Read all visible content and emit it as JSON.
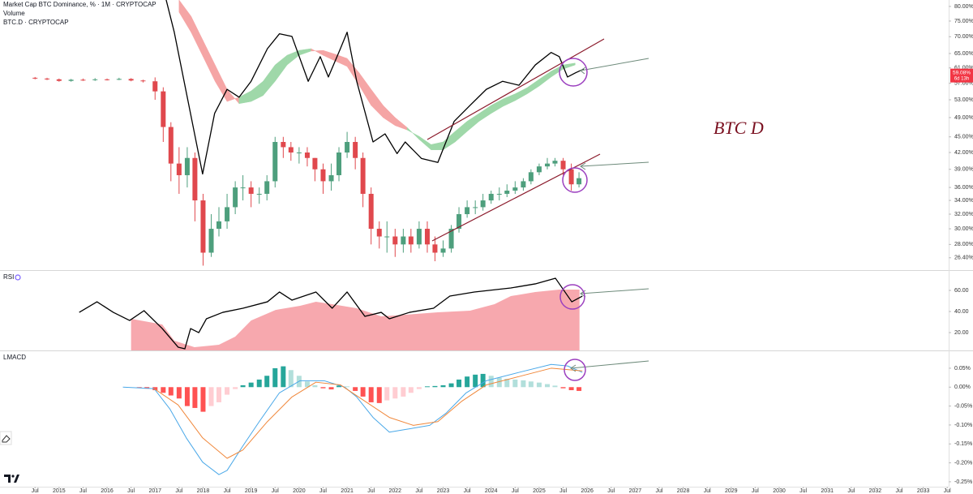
{
  "chart_data": [
    {
      "type": "candlestick",
      "title": "Market Cap BTC Dominance, % · 1M · CRYPTOCAP",
      "subtitle": "Volume",
      "annotation": "BTC D",
      "log_scale": true,
      "xlim": [
        2013.77,
        2033.53
      ],
      "ylim": [
        25.0,
        82.3
      ],
      "yticks": [
        {
          "value": 80,
          "label": "80.00%"
        },
        {
          "value": 75,
          "label": "75.00%"
        },
        {
          "value": 70,
          "label": "70.00%"
        },
        {
          "value": 65,
          "label": "65.00%"
        },
        {
          "value": 61,
          "label": "61.00%"
        },
        {
          "value": 57,
          "label": "57.00%"
        },
        {
          "value": 53,
          "label": "53.00%"
        },
        {
          "value": 49,
          "label": "49.00%"
        },
        {
          "value": 45,
          "label": "45.00%"
        },
        {
          "value": 42,
          "label": "42.00%"
        },
        {
          "value": 39,
          "label": "39.00%"
        },
        {
          "value": 36,
          "label": "36.00%"
        },
        {
          "value": 34,
          "label": "34.00%"
        },
        {
          "value": 32,
          "label": "32.00%"
        },
        {
          "value": 30,
          "label": "30.00%"
        },
        {
          "value": 28,
          "label": "28.00%"
        },
        {
          "value": 26.4,
          "label": "26.40%"
        }
      ],
      "up_color": "#4e9f7d",
      "down_color": "#e0484d",
      "x": [
        2014.5,
        2014.75,
        2015.0,
        2015.25,
        2015.5,
        2015.75,
        2016.0,
        2016.25,
        2016.5,
        2016.75,
        2017.0,
        2017.17,
        2017.33,
        2017.5,
        2017.67,
        2017.83,
        2018.0,
        2018.17,
        2018.33,
        2018.5,
        2018.67,
        2018.83,
        2019.0,
        2019.17,
        2019.33,
        2019.5,
        2019.67,
        2019.83,
        2020.0,
        2020.17,
        2020.33,
        2020.5,
        2020.67,
        2020.83,
        2021.0,
        2021.17,
        2021.33,
        2021.5,
        2021.67,
        2021.83,
        2022.0,
        2022.17,
        2022.33,
        2022.5,
        2022.67,
        2022.83,
        2023.0,
        2023.17,
        2023.33,
        2023.5,
        2023.67,
        2023.83,
        2024.0,
        2024.17,
        2024.33,
        2024.5,
        2024.67,
        2024.83,
        2025.0,
        2025.17,
        2025.33,
        2025.5,
        2025.67,
        2025.83
      ],
      "open": [
        58.4,
        58.2,
        58.0,
        57.6,
        57.9,
        57.8,
        58.0,
        57.9,
        58.1,
        57.7,
        57.5,
        55,
        47,
        40,
        38,
        41,
        34,
        27,
        30,
        31,
        33,
        36,
        36,
        35,
        35,
        37,
        44,
        43,
        42,
        42,
        41,
        39,
        37,
        38,
        42,
        44,
        41,
        35,
        30,
        29,
        29,
        28,
        29,
        28,
        30,
        28,
        27,
        27.5,
        30,
        32,
        33,
        33,
        34,
        35,
        35,
        35.5,
        36,
        37,
        38.5,
        39.5,
        40,
        40.5,
        39,
        36.5
      ],
      "high": [
        58.6,
        58.4,
        58.2,
        58.1,
        58.2,
        58.3,
        58.2,
        58.4,
        58.3,
        57.9,
        58.5,
        56,
        48,
        43,
        43,
        42,
        35,
        32,
        33,
        35,
        37,
        38,
        37,
        36,
        38,
        45,
        45,
        44,
        43,
        43,
        41,
        40,
        40,
        43,
        46,
        45,
        42,
        36,
        31,
        31,
        30,
        30,
        30,
        31,
        31,
        29,
        28.5,
        30.5,
        33,
        34,
        34,
        35,
        35.5,
        36,
        36.5,
        37,
        37.5,
        39,
        40,
        41,
        41,
        41,
        40,
        38.5
      ],
      "low": [
        58.0,
        57.8,
        57.4,
        57.4,
        57.6,
        57.6,
        57.7,
        57.8,
        57.5,
        57.2,
        53,
        44,
        37,
        35,
        36,
        31,
        25.5,
        26.5,
        29,
        30,
        32,
        34,
        33,
        33.5,
        34,
        36,
        41,
        40.5,
        40,
        39.5,
        37,
        35,
        35.5,
        37,
        41,
        39,
        33,
        28,
        27.5,
        27,
        26.5,
        27,
        27,
        27.5,
        27,
        26,
        26.5,
        27,
        29.5,
        31.5,
        32,
        32.5,
        33.5,
        34,
        34.5,
        35,
        35.5,
        36.5,
        38,
        39,
        39.5,
        38,
        35.5,
        36
      ],
      "close": [
        58.2,
        58.0,
        57.6,
        57.9,
        57.8,
        58.0,
        57.9,
        58.1,
        57.7,
        57.5,
        55,
        47,
        40,
        38,
        41,
        34,
        27,
        30,
        31,
        33,
        36,
        36,
        35,
        35,
        37,
        44,
        43,
        42,
        42,
        41,
        39,
        37,
        38,
        42,
        44,
        41,
        35,
        30,
        29,
        29,
        28,
        29,
        28,
        30,
        28,
        27,
        27.5,
        30,
        32,
        33,
        33,
        34,
        35,
        35,
        35.5,
        36,
        37,
        38.5,
        39.5,
        40,
        40.5,
        39,
        36.5,
        37.5
      ],
      "ribbon": {
        "up_color": "#9fd8a9",
        "down_color": "#f5a5a5",
        "x": [
          2017.5,
          2017.75,
          2018.0,
          2018.25,
          2018.5,
          2018.75,
          2019.0,
          2019.25,
          2019.5,
          2019.75,
          2020.0,
          2020.25,
          2020.5,
          2020.75,
          2021.0,
          2021.25,
          2021.5,
          2021.75,
          2022.0,
          2022.25,
          2022.5,
          2022.75,
          2023.0,
          2023.25,
          2023.5,
          2023.75,
          2024.0,
          2024.25,
          2024.5,
          2024.75,
          2025.0,
          2025.25,
          2025.5,
          2025.75
        ],
        "fast": [
          78.0,
          71.4,
          64.1,
          57.5,
          52.6,
          53.6,
          55.1,
          57.5,
          61.8,
          64.5,
          65.9,
          66.4,
          64.5,
          62.9,
          61.4,
          56.5,
          51.7,
          49.0,
          47.3,
          46.4,
          45.1,
          43.5,
          44.0,
          46.1,
          48.2,
          49.9,
          51.7,
          53.2,
          54.4,
          55.9,
          58.0,
          60.1,
          61.8,
          62.3
        ],
        "slow": [
          82.3,
          76.6,
          68.8,
          61.8,
          55.5,
          52.1,
          52.6,
          54.0,
          57.5,
          61.8,
          64.5,
          65.7,
          65.9,
          64.8,
          63.6,
          59.7,
          55.5,
          51.7,
          49.0,
          46.9,
          44.5,
          42.5,
          42.5,
          44.0,
          46.1,
          48.2,
          49.9,
          51.5,
          52.8,
          54.4,
          56.3,
          58.6,
          60.7,
          61.8
        ]
      },
      "series": [
        {
          "name": "BTC.D · CRYPTOCAP",
          "color": "#000000",
          "x": [
            2017.23,
            2017.4,
            2017.99,
            2018.24,
            2018.5,
            2018.75,
            2019.0,
            2019.34,
            2019.59,
            2019.85,
            2020.19,
            2020.44,
            2020.61,
            2020.86,
            2021.0,
            2021.2,
            2021.54,
            2021.79,
            2022.04,
            2022.21,
            2022.55,
            2022.89,
            2023.23,
            2023.56,
            2023.9,
            2024.24,
            2024.58,
            2024.92,
            2025.25,
            2025.42,
            2025.59,
            2025.76,
            2025.93
          ],
          "values": [
            82.4,
            71.4,
            38.2,
            49.9,
            55.5,
            53.6,
            57.5,
            66.4,
            70.9,
            70.1,
            57.5,
            64.1,
            58.6,
            66.4,
            71.4,
            57.5,
            44.0,
            45.6,
            41.8,
            44.0,
            40.9,
            40.2,
            48.2,
            51.7,
            55.5,
            57.5,
            56.5,
            61.8,
            65.3,
            64.1,
            58.6,
            59.7,
            60.7
          ]
        }
      ],
      "price_tag": {
        "value": 59.08,
        "label": "59.08%",
        "countdown": "6d 13h",
        "color": "#f23645"
      }
    },
    {
      "type": "line",
      "title": "RSI",
      "xlim": [
        2013.77,
        2033.53
      ],
      "ylim": [
        3.1,
        77.7
      ],
      "yticks": [
        {
          "value": 60,
          "label": "60.00"
        },
        {
          "value": 40,
          "label": "40.00"
        },
        {
          "value": 20,
          "label": "20.00"
        }
      ],
      "area": {
        "color": "#f7a8ae",
        "x": [
          2016.5,
          2017.15,
          2017.4,
          2017.82,
          2018.33,
          2018.67,
          2019.0,
          2019.51,
          2020.02,
          2020.35,
          2020.69,
          2021.2,
          2021.71,
          2022.21,
          2022.89,
          2023.56,
          2024.07,
          2024.41,
          2024.92,
          2025.42,
          2025.84
        ],
        "values": [
          33.1,
          27.7,
          12.3,
          6.2,
          8.5,
          16.2,
          31.5,
          41.5,
          45.4,
          49.2,
          46.9,
          43.1,
          35.4,
          36.9,
          39.2,
          40.8,
          46.9,
          54.6,
          58.5,
          60.8,
          60.8
        ]
      },
      "line": {
        "color": "#000000",
        "x": [
          2015.42,
          2015.79,
          2016.13,
          2016.47,
          2016.77,
          2017.15,
          2017.48,
          2017.62,
          2017.74,
          2017.91,
          2018.07,
          2018.41,
          2018.83,
          2019.34,
          2019.59,
          2019.85,
          2020.35,
          2020.69,
          2021.0,
          2021.37,
          2021.71,
          2021.88,
          2022.3,
          2022.8,
          2023.14,
          2023.65,
          2024.41,
          2024.92,
          2025.34,
          2025.68,
          2025.9
        ],
        "values": [
          39.2,
          49.2,
          39.2,
          31.5,
          40.8,
          23.8,
          6.2,
          4.6,
          23.8,
          20.0,
          33.1,
          39.2,
          43.1,
          49.2,
          58.5,
          50.8,
          58.5,
          43.1,
          58.5,
          35.4,
          39.2,
          33.1,
          39.2,
          43.1,
          54.6,
          58.5,
          62.3,
          66.2,
          71.5,
          49.2,
          54.6
        ]
      }
    },
    {
      "type": "histogram",
      "title": "LMACD",
      "xlim": [
        2013.77,
        2033.53
      ],
      "ylim": [
        -0.263,
        0.0927
      ],
      "yticks": [
        {
          "value": 0.05,
          "label": "0.05%"
        },
        {
          "value": 0,
          "label": "0.00%"
        },
        {
          "value": -0.05,
          "label": "-0.05%"
        },
        {
          "value": -0.1,
          "label": "-0.10%"
        },
        {
          "value": -0.15,
          "label": "-0.15%"
        },
        {
          "value": -0.2,
          "label": "-0.20%"
        },
        {
          "value": -0.25,
          "label": "-0.25%"
        }
      ],
      "xticks": [
        {
          "value": 2014.5,
          "label": "Jul"
        },
        2015,
        {
          "value": 2015.5,
          "label": "Jul"
        },
        2016,
        {
          "value": 2016.5,
          "label": "Jul"
        },
        2017,
        {
          "value": 2017.5,
          "label": "Jul"
        },
        2018,
        {
          "value": 2018.5,
          "label": "Jul"
        },
        2019,
        {
          "value": 2019.5,
          "label": "Jul"
        },
        2020,
        {
          "value": 2020.5,
          "label": "Jul"
        },
        2021,
        {
          "value": 2021.5,
          "label": "Jul"
        },
        2022,
        {
          "value": 2022.5,
          "label": "Jul"
        },
        2023,
        {
          "value": 2023.5,
          "label": "Jul"
        },
        2024,
        {
          "value": 2024.5,
          "label": "Jul"
        },
        2025,
        {
          "value": 2025.5,
          "label": "Jul"
        },
        2026,
        {
          "value": 2026.5,
          "label": "Jul"
        },
        2027,
        {
          "value": 2027.5,
          "label": "Jul"
        },
        2028,
        {
          "value": 2028.5,
          "label": "Jul"
        },
        2029,
        {
          "value": 2029.5,
          "label": "Jul"
        },
        2030,
        {
          "value": 2030.5,
          "label": "Jul"
        },
        2031,
        {
          "value": 2031.5,
          "label": "Jul"
        },
        2032,
        {
          "value": 2032.5,
          "label": "Jul"
        },
        2033,
        {
          "value": 2033.5,
          "label": "Jul"
        }
      ],
      "histogram": {
        "rise_above": "#26a69a",
        "fall_above": "#b2dfdb",
        "rise_below": "#ffcdd2",
        "fall_below": "#ff5252",
        "x": [
          2016.5,
          2016.67,
          2016.83,
          2017.0,
          2017.17,
          2017.33,
          2017.5,
          2017.67,
          2017.83,
          2018.0,
          2018.17,
          2018.33,
          2018.5,
          2018.67,
          2018.83,
          2019.0,
          2019.17,
          2019.33,
          2019.5,
          2019.67,
          2019.83,
          2020.0,
          2020.17,
          2020.33,
          2020.5,
          2020.67,
          2020.83,
          2021.0,
          2021.17,
          2021.33,
          2021.5,
          2021.67,
          2021.83,
          2022.0,
          2022.17,
          2022.33,
          2022.5,
          2022.67,
          2022.83,
          2023.0,
          2023.17,
          2023.33,
          2023.5,
          2023.67,
          2023.83,
          2024.0,
          2024.17,
          2024.33,
          2024.5,
          2024.67,
          2024.83,
          2025.0,
          2025.17,
          2025.33,
          2025.5,
          2025.67,
          2025.83
        ],
        "values": [
          0,
          -0.002,
          -0.004,
          -0.008,
          -0.015,
          -0.022,
          -0.03,
          -0.05,
          -0.055,
          -0.065,
          -0.05,
          -0.04,
          -0.02,
          -0.005,
          0.005,
          0.012,
          0.02,
          0.03,
          0.05,
          0.055,
          0.045,
          0.03,
          0.015,
          0.005,
          -0.003,
          -0.006,
          0.004,
          0.002,
          -0.01,
          -0.025,
          -0.04,
          -0.042,
          -0.035,
          -0.03,
          -0.025,
          -0.015,
          -0.005,
          0.002,
          0.003,
          0.005,
          0.01,
          0.02,
          0.028,
          0.033,
          0.035,
          0.03,
          0.025,
          0.022,
          0.02,
          0.018,
          0.015,
          0.012,
          0.008,
          0.004,
          -0.003,
          -0.008,
          -0.01
        ]
      },
      "macd": {
        "color": "#4aa8e8",
        "x": [
          2016.33,
          2016.98,
          2017.31,
          2017.65,
          2017.99,
          2018.33,
          2018.5,
          2018.83,
          2019.17,
          2019.59,
          2020.02,
          2020.52,
          2020.95,
          2021.2,
          2021.54,
          2021.88,
          2022.21,
          2022.72,
          2023.06,
          2023.48,
          2023.9,
          2024.58,
          2025.25,
          2025.59,
          2025.9
        ],
        "values": [
          0,
          -0.004,
          -0.058,
          -0.134,
          -0.198,
          -0.231,
          -0.22,
          -0.155,
          -0.091,
          -0.015,
          0.017,
          0.017,
          0,
          -0.026,
          -0.08,
          -0.119,
          -0.112,
          -0.101,
          -0.069,
          -0.015,
          0.017,
          0.039,
          0.06,
          0.056,
          0.039
        ]
      },
      "signal": {
        "color": "#f0873a",
        "x": [
          2016.98,
          2017.48,
          2017.99,
          2018.5,
          2018.83,
          2019.34,
          2019.85,
          2020.35,
          2020.86,
          2021.37,
          2021.88,
          2022.38,
          2022.89,
          2023.39,
          2023.9,
          2024.58,
          2025.25,
          2025.9
        ],
        "values": [
          -0.004,
          -0.047,
          -0.134,
          -0.188,
          -0.166,
          -0.091,
          -0.026,
          0.013,
          0.006,
          -0.037,
          -0.08,
          -0.101,
          -0.091,
          -0.037,
          0.006,
          0.028,
          0.05,
          0.043
        ]
      }
    }
  ]
}
